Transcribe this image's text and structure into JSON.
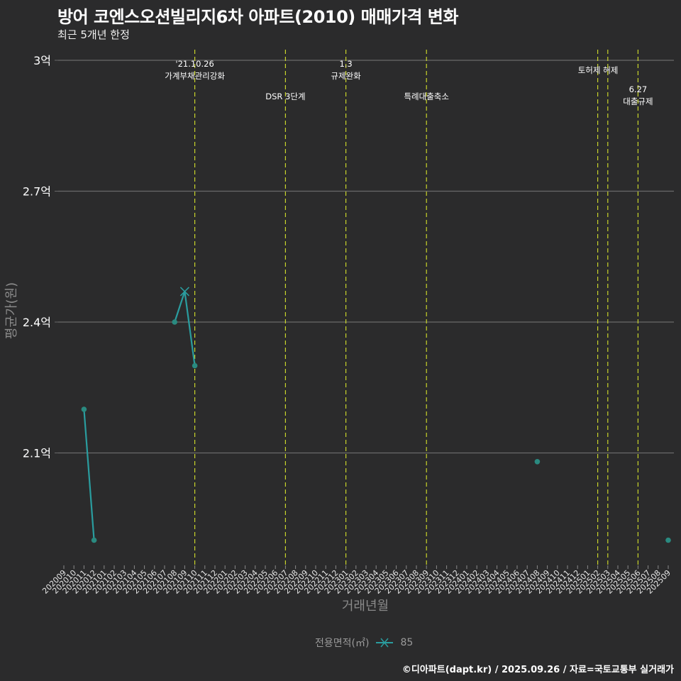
{
  "header": {
    "title": "방어 코엔스오션빌리지6차 아파트(2010) 매매가격 변화",
    "subtitle": "최근 5개년 한정"
  },
  "axes": {
    "ylabel": "평균가(원)",
    "xlabel": "거래년월"
  },
  "legend": {
    "title": "전용면적(㎡)",
    "items": [
      {
        "label": "85",
        "color": "#2a9d9f"
      }
    ]
  },
  "caption": "©디아파트(dapt.kr) / 2025.09.26 / 자료=국토교통부 실거래가",
  "colors": {
    "background": "#2b2b2c",
    "series": "#2a9d9f",
    "point": "#2a8a80",
    "event_line": "#c8d42a",
    "grid": "#6a6a6a"
  },
  "chart_data": {
    "type": "line",
    "title": "방어 코엔스오션빌리지6차 아파트(2010) 매매가격 변화",
    "subtitle": "최근 5개년 한정",
    "xlabel": "거래년월",
    "ylabel": "평균가(원)",
    "ylim": [
      1.85,
      3.0
    ],
    "yticks": [
      3.0,
      2.7,
      2.4,
      2.1
    ],
    "ytick_labels": [
      "3억",
      "2.7억",
      "2.4억",
      "2.1억"
    ],
    "grid": "horizontal",
    "legend_position": "bottom",
    "categories": [
      "202009",
      "202010",
      "202011",
      "202012",
      "202101",
      "202102",
      "202103",
      "202104",
      "202105",
      "202106",
      "202107",
      "202108",
      "202109",
      "202110",
      "202111",
      "202112",
      "202201",
      "202202",
      "202203",
      "202204",
      "202205",
      "202206",
      "202207",
      "202208",
      "202209",
      "202210",
      "202211",
      "202212",
      "202301",
      "202302",
      "202303",
      "202304",
      "202305",
      "202306",
      "202307",
      "202308",
      "202309",
      "202310",
      "202311",
      "202312",
      "202401",
      "202402",
      "202403",
      "202404",
      "202405",
      "202406",
      "202407",
      "202408",
      "202409",
      "202410",
      "202411",
      "202412",
      "202501",
      "202502",
      "202503",
      "202504",
      "202505",
      "202506",
      "202507",
      "202508",
      "202509"
    ],
    "series": [
      {
        "name": "85",
        "points": [
          {
            "x": "202011",
            "y": 2.2
          },
          {
            "x": "202012",
            "y": 1.9
          },
          {
            "x": "202108",
            "y": 2.4
          },
          {
            "x": "202109",
            "y": 2.47
          },
          {
            "x": "202110",
            "y": 2.3
          },
          {
            "x": "202408",
            "y": 2.08
          },
          {
            "x": "202509",
            "y": 1.9
          }
        ],
        "segments": [
          [
            "202011",
            "202012"
          ],
          [
            "202108",
            "202109",
            "202110"
          ]
        ]
      }
    ],
    "annotations": [
      {
        "x": "202110",
        "lines": [
          "'21.10.26",
          "가계부채관리강화"
        ]
      },
      {
        "x": "202207",
        "lines": [
          "DSR 3단계"
        ]
      },
      {
        "x": "202301",
        "lines": [
          "1.3",
          "규제완화"
        ]
      },
      {
        "x": "202309",
        "lines": [
          "특례대출축소"
        ]
      },
      {
        "x": "202502",
        "lines": [
          "토허제 해제"
        ]
      },
      {
        "x": "202503",
        "lines": []
      },
      {
        "x": "202506",
        "lines": [
          "6.27",
          "대출규제"
        ]
      }
    ]
  }
}
